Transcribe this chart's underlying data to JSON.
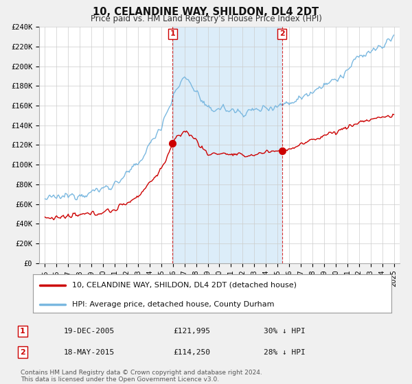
{
  "title": "10, CELANDINE WAY, SHILDON, DL4 2DT",
  "subtitle": "Price paid vs. HM Land Registry's House Price Index (HPI)",
  "legend_line1": "10, CELANDINE WAY, SHILDON, DL4 2DT (detached house)",
  "legend_line2": "HPI: Average price, detached house, County Durham",
  "sale1_label": "1",
  "sale1_date": "19-DEC-2005",
  "sale1_price": "£121,995",
  "sale1_hpi": "30% ↓ HPI",
  "sale2_label": "2",
  "sale2_date": "18-MAY-2015",
  "sale2_price": "£114,250",
  "sale2_hpi": "28% ↓ HPI",
  "footer": "Contains HM Land Registry data © Crown copyright and database right 2024.\nThis data is licensed under the Open Government Licence v3.0.",
  "hpi_color": "#7ab8e0",
  "hpi_fill_color": "#d6eaf8",
  "price_color": "#cc0000",
  "marker1_x": 2005.97,
  "marker1_y": 121995,
  "marker2_x": 2015.38,
  "marker2_y": 114250,
  "ylim_min": 0,
  "ylim_max": 240000,
  "xlim_min": 1994.5,
  "xlim_max": 2025.5,
  "yticks": [
    0,
    20000,
    40000,
    60000,
    80000,
    100000,
    120000,
    140000,
    160000,
    180000,
    200000,
    220000,
    240000
  ],
  "ytick_labels": [
    "£0",
    "£20K",
    "£40K",
    "£60K",
    "£80K",
    "£100K",
    "£120K",
    "£140K",
    "£160K",
    "£180K",
    "£200K",
    "£220K",
    "£240K"
  ],
  "xticks": [
    1995,
    1996,
    1997,
    1998,
    1999,
    2000,
    2001,
    2002,
    2003,
    2004,
    2005,
    2006,
    2007,
    2008,
    2009,
    2010,
    2011,
    2012,
    2013,
    2014,
    2015,
    2016,
    2017,
    2018,
    2019,
    2020,
    2021,
    2022,
    2023,
    2024,
    2025
  ],
  "vline1_x": 2005.97,
  "vline2_x": 2015.38,
  "background_color": "#f0f0f0",
  "plot_bg_color": "#ffffff"
}
